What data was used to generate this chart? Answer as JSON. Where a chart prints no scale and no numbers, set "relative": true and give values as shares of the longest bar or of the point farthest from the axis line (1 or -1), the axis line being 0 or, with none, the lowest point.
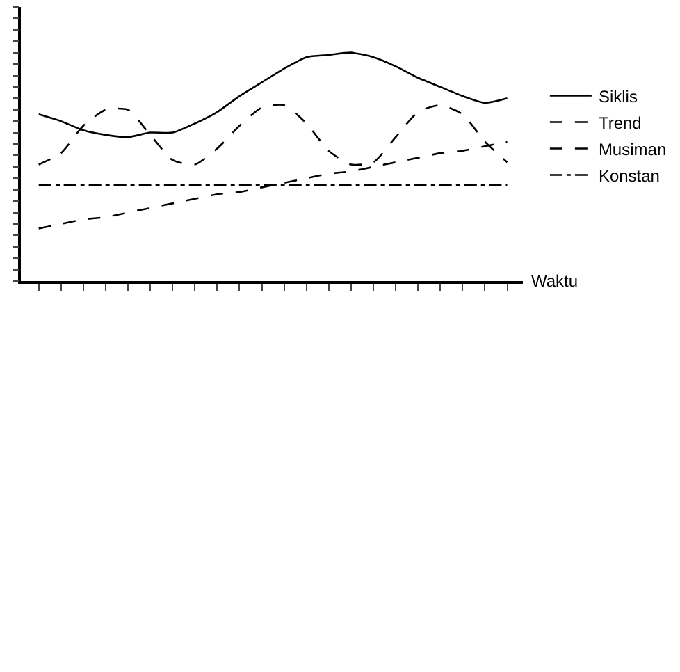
{
  "chart_data": {
    "type": "line",
    "relative": true,
    "xlabel": "Waktu",
    "legend": "right",
    "marker": "none",
    "categories": [
      null,
      null,
      null,
      null,
      null,
      null,
      null,
      null,
      null,
      null,
      null,
      null,
      null,
      null,
      null,
      null,
      null,
      null,
      null,
      null,
      null,
      null
    ],
    "series": [
      {
        "name": "Siklis",
        "color": "#000000",
        "line_style": "solid",
        "values": [
          0.73,
          0.7,
          0.66,
          0.64,
          0.63,
          0.65,
          0.65,
          0.69,
          0.74,
          0.81,
          0.87,
          0.93,
          0.98,
          0.99,
          1,
          0.98,
          0.94,
          0.89,
          0.85,
          0.81,
          0.78,
          0.8
        ]
      },
      {
        "name": "Trend",
        "color": "#000000",
        "line_style": "dashed",
        "values": [
          0.23,
          0.25,
          0.27,
          0.28,
          0.3,
          0.32,
          0.34,
          0.36,
          0.38,
          0.39,
          0.41,
          0.43,
          0.45,
          0.47,
          0.48,
          0.5,
          0.52,
          0.54,
          0.56,
          0.57,
          0.59,
          0.61
        ]
      },
      {
        "name": "Musiman",
        "color": "#000000",
        "line_style": "dashed",
        "values": [
          0.51,
          0.56,
          0.68,
          0.75,
          0.75,
          0.64,
          0.53,
          0.51,
          0.58,
          0.68,
          0.76,
          0.77,
          0.69,
          0.57,
          0.51,
          0.52,
          0.63,
          0.74,
          0.77,
          0.73,
          0.61,
          0.52
        ]
      },
      {
        "name": "Konstan",
        "color": "#000000",
        "line_style": "dashdot",
        "values": [
          0.42,
          0.42,
          0.42,
          0.42,
          0.42,
          0.42,
          0.42,
          0.42,
          0.42,
          0.42,
          0.42,
          0.42,
          0.42,
          0.42,
          0.42,
          0.42,
          0.42,
          0.42,
          0.42,
          0.42,
          0.42,
          0.42
        ]
      }
    ]
  }
}
